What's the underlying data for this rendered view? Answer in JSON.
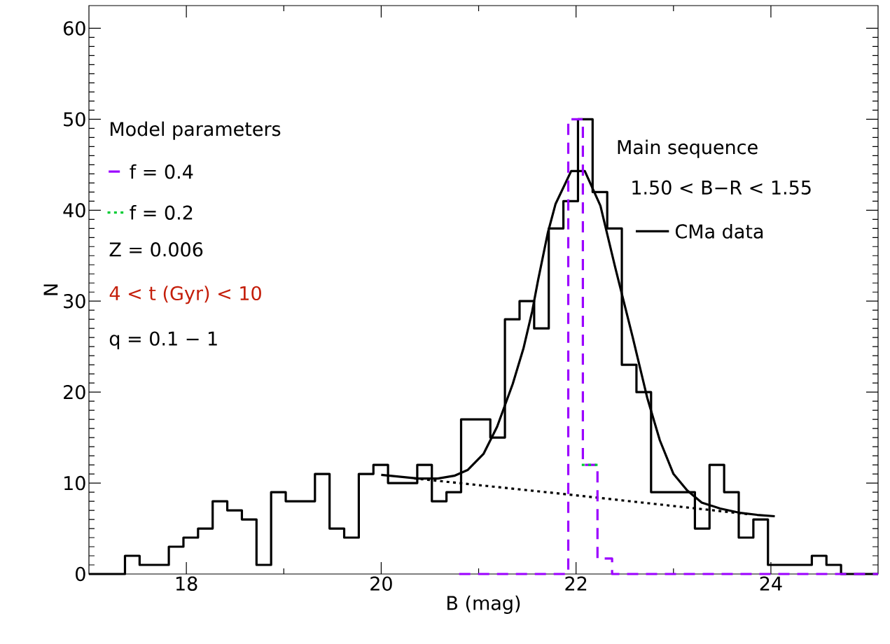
{
  "chart_data": {
    "type": "step",
    "xlabel": "B (mag)",
    "ylabel": "N",
    "xlim": [
      17,
      25.1
    ],
    "ylim": [
      0,
      62.5
    ],
    "xticks": [
      18,
      20,
      22,
      24
    ],
    "yticks": [
      0,
      10,
      20,
      30,
      40,
      50,
      60
    ],
    "legend": "top left",
    "legend_title": "Model parameters",
    "series": [
      {
        "name": "CMa data",
        "color": "#000000",
        "line_style": "solid",
        "x": [
          17.0,
          17.37,
          17.52,
          17.67,
          17.82,
          17.97,
          18.12,
          18.27,
          18.42,
          18.57,
          18.72,
          18.87,
          19.02,
          19.17,
          19.32,
          19.47,
          19.62,
          19.77,
          19.92,
          20.07,
          20.22,
          20.37,
          20.52,
          20.67,
          20.82,
          20.97,
          21.12,
          21.27,
          21.42,
          21.57,
          21.72,
          21.87,
          22.02,
          22.17,
          22.32,
          22.47,
          22.62,
          22.77,
          22.92,
          23.07,
          23.22,
          23.37,
          23.52,
          23.67,
          23.82,
          23.97,
          24.12,
          24.27,
          24.42,
          24.57,
          24.72,
          25.1
        ],
        "values": [
          0,
          2,
          1,
          1,
          3,
          4,
          5,
          8,
          7,
          6,
          1,
          9,
          8,
          8,
          11,
          5,
          4,
          11,
          12,
          10,
          10,
          12,
          8,
          9,
          17,
          17,
          15,
          28,
          30,
          27,
          38,
          41,
          50,
          42,
          38,
          23,
          20,
          9,
          9,
          9,
          5,
          12,
          9,
          4,
          6,
          1,
          1,
          1,
          2,
          1,
          0,
          0
        ]
      },
      {
        "type": "line",
        "color": "#000000",
        "line_style": "solid",
        "x": [
          20.0,
          20.38,
          20.58,
          20.75,
          20.89,
          21.05,
          21.19,
          21.35,
          21.46,
          21.55,
          21.61,
          21.71,
          21.79,
          21.95,
          22.09,
          22.25,
          22.4,
          22.58,
          22.73,
          22.86,
          23.0,
          23.14,
          23.29,
          23.48,
          23.67,
          23.86,
          24.04
        ],
        "values": [
          10.9,
          10.5,
          10.5,
          10.8,
          11.45,
          13.2,
          16.2,
          20.9,
          24.8,
          28.9,
          32.3,
          37.5,
          40.7,
          44.3,
          44.3,
          40.5,
          33.8,
          26.1,
          19.4,
          14.7,
          11.0,
          9.2,
          7.85,
          7.2,
          6.75,
          6.5,
          6.35
        ]
      },
      {
        "type": "line",
        "color": "#000000",
        "line_style": "dotted",
        "x": [
          20.35,
          21.87,
          23.75
        ],
        "values": [
          10.5,
          8.8,
          6.6
        ]
      },
      {
        "name": "f = 0.4",
        "color": "#9b00ff",
        "line_style": "dashed",
        "x": [
          20.8,
          21.92,
          22.07,
          22.22,
          22.37,
          25.1
        ],
        "values": [
          0,
          50,
          12,
          1.7,
          0,
          0
        ]
      },
      {
        "name": "f = 0.2",
        "color": "#00cc33",
        "line_style": "dotted",
        "x": [
          22.07,
          22.22
        ],
        "values": [
          12,
          12
        ]
      }
    ],
    "annotations": [
      "Main sequence",
      "1.50 < B−R < 1.55",
      "Z = 0.006",
      "4 < t (Gyr) < 10",
      "q = 0.1 − 1"
    ]
  }
}
